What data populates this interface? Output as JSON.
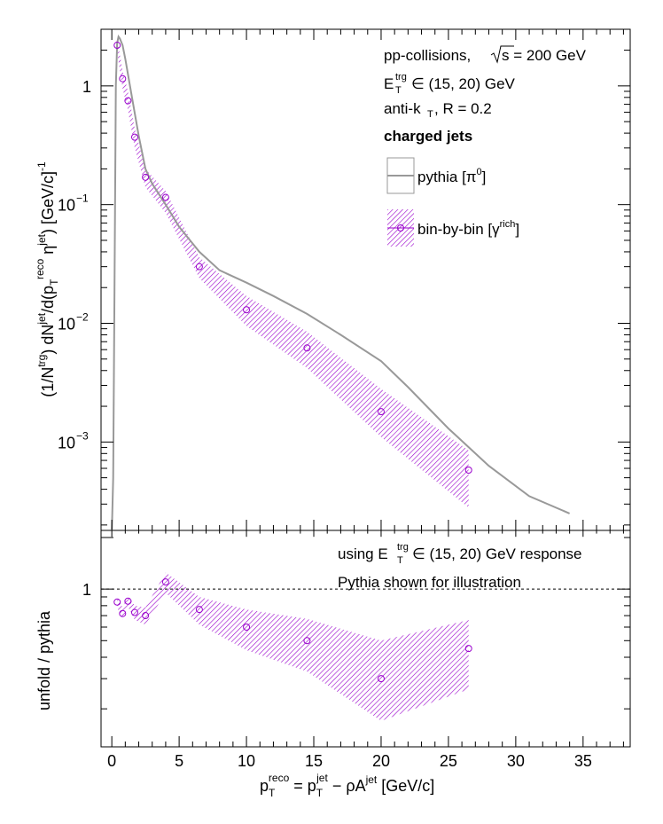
{
  "chart_data": [
    {
      "type": "line",
      "panel": "upper",
      "ylabel": "(1/N^trg) dN^jet/d(p_T^reco η^jet) [GeV/c]^-1",
      "yscale": "log",
      "xlim": [
        -0.8,
        38.5
      ],
      "ylim": [
        0.00018,
        3.0
      ],
      "y_ticks": [
        {
          "value": 1,
          "label": "1"
        },
        {
          "value": 0.1,
          "label": "10",
          "exp": "−1"
        },
        {
          "value": 0.01,
          "label": "10",
          "exp": "−2"
        },
        {
          "value": 0.001,
          "label": "10",
          "exp": "−3"
        }
      ],
      "annotations": {
        "line1": "pp-collisions,",
        "sqrt_s": "s",
        "energy": " = 200 GeV",
        "line2_pre": "E",
        "line2_sup": "trg",
        "line2_sub": "T",
        "line2_post": " ∈ (15, 20) GeV",
        "line3_pre": "anti-k",
        "line3_sub": "T",
        "line3_post": ", R = 0.2",
        "line4": "charged jets"
      },
      "legend": [
        {
          "label_pre": "pythia [π",
          "label_sup": "0",
          "label_post": "]",
          "color": "#999999"
        },
        {
          "label_pre": "bin-by-bin [γ",
          "label_sup": "rich",
          "label_post": "]",
          "color": "#9900cc"
        }
      ],
      "series": [
        {
          "name": "pythia [π0]",
          "color": "#999999",
          "x": [
            0.0,
            0.1,
            0.2,
            0.3,
            0.4,
            0.5,
            0.6,
            0.8,
            1.0,
            1.5,
            2.0,
            2.5,
            3.0,
            4.0,
            5.0,
            6.5,
            8.0,
            10.0,
            12.0,
            14.5,
            17.0,
            20.0,
            22.0,
            25.0,
            28.0,
            31.0,
            34.0
          ],
          "y": [
            0.00018,
            0.0005,
            0.02,
            1.0,
            2.3,
            2.6,
            2.5,
            2.2,
            1.7,
            0.8,
            0.38,
            0.2,
            0.15,
            0.1,
            0.065,
            0.04,
            0.028,
            0.022,
            0.017,
            0.012,
            0.008,
            0.0048,
            0.0029,
            0.0013,
            0.00063,
            0.00035,
            0.00025
          ]
        },
        {
          "name": "bin-by-bin [γrich]",
          "color": "#9900cc",
          "x": [
            0.4,
            0.8,
            1.2,
            1.7,
            2.5,
            4.0,
            6.5,
            10.0,
            14.5,
            20.0,
            26.5
          ],
          "y": [
            2.2,
            1.15,
            0.75,
            0.37,
            0.17,
            0.115,
            0.03,
            0.013,
            0.0062,
            0.0018,
            0.00058
          ],
          "band_lo": [
            1.9,
            0.95,
            0.62,
            0.3,
            0.14,
            0.085,
            0.024,
            0.0095,
            0.0042,
            0.0011,
            0.00028
          ],
          "band_hi": [
            2.5,
            1.35,
            0.9,
            0.44,
            0.2,
            0.13,
            0.036,
            0.017,
            0.0085,
            0.0028,
            0.00085
          ]
        }
      ]
    },
    {
      "type": "scatter",
      "panel": "lower",
      "ylabel": "unfold / pythia",
      "xlabel": "p_T^reco = p_T^jet − ρA^jet [GeV/c]",
      "xlim": [
        -0.8,
        38.5
      ],
      "ylim": [
        0.12,
        2.2
      ],
      "x_ticks": [
        0,
        5,
        10,
        15,
        20,
        25,
        30,
        35
      ],
      "y_ticks": [
        {
          "value": 1,
          "label": "1"
        }
      ],
      "reference_line": 1,
      "annotations": {
        "line1_pre": "using E",
        "line1_sup": "trg",
        "line1_sub": "T",
        "line1_post": " ∈ (15, 20) GeV response",
        "line2": "Pythia shown for illustration"
      },
      "series": [
        {
          "name": "unfold / pythia",
          "color": "#9900cc",
          "x": [
            0.4,
            0.8,
            1.2,
            1.7,
            2.5,
            4.0,
            6.5,
            10.0,
            14.5,
            20.0,
            26.5
          ],
          "y": [
            0.84,
            0.72,
            0.85,
            0.73,
            0.7,
            1.1,
            0.76,
            0.6,
            0.5,
            0.3,
            0.45
          ],
          "band_lo": [
            0.78,
            0.66,
            0.79,
            0.66,
            0.62,
            0.95,
            0.62,
            0.44,
            0.33,
            0.17,
            0.26
          ],
          "band_hi": [
            0.9,
            0.78,
            0.92,
            0.8,
            0.78,
            1.25,
            0.9,
            0.76,
            0.67,
            0.5,
            0.66
          ]
        }
      ]
    }
  ],
  "axis_text": {
    "x_title_p": "p",
    "x_title_T1": "T",
    "x_title_reco": "reco",
    "x_title_mid": " = p",
    "x_title_T2": "T",
    "x_title_jet1": "jet",
    "x_title_rho": " − ρA",
    "x_title_jet2": "jet",
    "x_title_unit": " [GeV/c]",
    "y_title_a": "(1/N",
    "y_title_trg": "trg",
    "y_title_b": ") dN",
    "y_title_jet": "jet",
    "y_title_c": "/d(p",
    "y_title_T": "T",
    "y_title_reco": "reco",
    "y_title_d": " η",
    "y_title_jet2": "jet",
    "y_title_e": ") [GeV/c]",
    "y_title_exp": "-1",
    "lower_ylabel": "unfold / pythia"
  }
}
